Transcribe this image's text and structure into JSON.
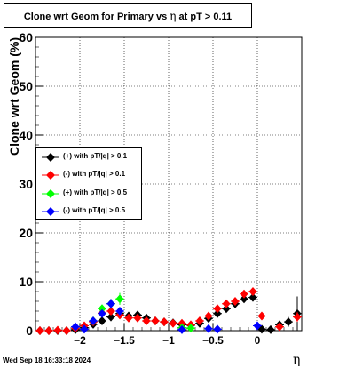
{
  "title": {
    "prefix": "Clone wrt Geom for Primary vs",
    "symbol": "η",
    "suffix": "at pT > 0.11"
  },
  "footer": "Wed Sep 18 16:33:18 2024",
  "colors": {
    "plus_0_1": "#000000",
    "minus_0_1": "#ff0000",
    "plus_0_5": "#00ff00",
    "minus_0_5": "#0000ff"
  },
  "chart_data": {
    "type": "scatter",
    "title": "Clone wrt Geom for Primary vs η at pT > 0.11",
    "xlabel": "η",
    "ylabel": "Clone wrt Geom (%)",
    "xlim": [
      -2.5,
      0.5
    ],
    "ylim": [
      0,
      60
    ],
    "xticks": [
      -2,
      -1.5,
      -1,
      -0.5,
      0
    ],
    "xtick_labels": [
      "−2",
      "−1.5",
      "−1",
      "−0.5",
      "0"
    ],
    "yticks": [
      0,
      10,
      20,
      30,
      40,
      50,
      60
    ],
    "ytick_labels": [
      "0",
      "10",
      "20",
      "30",
      "40",
      "50",
      "60"
    ],
    "grid": true,
    "legend_position": "middle-left",
    "series": [
      {
        "name": "(+) with pT/|q| > 0.1",
        "color": "#000000",
        "points": [
          [
            -2.45,
            0
          ],
          [
            -2.35,
            0
          ],
          [
            -2.25,
            0
          ],
          [
            -2.15,
            0
          ],
          [
            -2.05,
            0.2
          ],
          [
            -1.95,
            0.6
          ],
          [
            -1.85,
            1.3
          ],
          [
            -1.75,
            2.0
          ],
          [
            -1.65,
            2.8
          ],
          [
            -1.55,
            3.5
          ],
          [
            -1.45,
            3.0
          ],
          [
            -1.35,
            3.2
          ],
          [
            -1.25,
            2.6
          ],
          [
            -1.15,
            2.0
          ],
          [
            -1.05,
            1.8
          ],
          [
            -0.95,
            1.6
          ],
          [
            -0.85,
            1.2
          ],
          [
            -0.75,
            1.1
          ],
          [
            -0.65,
            1.5
          ],
          [
            -0.55,
            2.5
          ],
          [
            -0.45,
            3.5
          ],
          [
            -0.35,
            4.5
          ],
          [
            -0.25,
            5.5
          ],
          [
            -0.15,
            6.5
          ],
          [
            -0.05,
            6.8
          ],
          [
            0.05,
            0.3
          ],
          [
            0.15,
            0.2
          ],
          [
            0.25,
            1.2
          ],
          [
            0.35,
            1.8
          ],
          [
            0.45,
            3.5
          ]
        ],
        "errors": [
          0.2,
          0.2,
          0.2,
          0.2,
          0.2,
          0.2,
          0.3,
          0.3,
          0.3,
          0.4,
          0.3,
          0.3,
          0.3,
          0.3,
          0.2,
          0.2,
          0.2,
          0.2,
          0.2,
          0.3,
          0.3,
          0.4,
          0.4,
          0.5,
          0.5,
          0.3,
          0.3,
          0.8,
          1.0,
          3.5
        ]
      },
      {
        "name": "(-) with pT/|q| > 0.1",
        "color": "#ff0000",
        "points": [
          [
            -2.45,
            0
          ],
          [
            -2.35,
            0
          ],
          [
            -2.25,
            0.1
          ],
          [
            -2.15,
            0
          ],
          [
            -2.05,
            0.5
          ],
          [
            -1.95,
            1.0
          ],
          [
            -1.85,
            1.8
          ],
          [
            -1.75,
            3.6
          ],
          [
            -1.65,
            4.0
          ],
          [
            -1.55,
            3.2
          ],
          [
            -1.45,
            2.6
          ],
          [
            -1.35,
            2.6
          ],
          [
            -1.25,
            2.0
          ],
          [
            -1.15,
            2.0
          ],
          [
            -1.05,
            1.8
          ],
          [
            -0.95,
            1.5
          ],
          [
            -0.85,
            1.5
          ],
          [
            -0.75,
            1.2
          ],
          [
            -0.65,
            2.0
          ],
          [
            -0.55,
            3.0
          ],
          [
            -0.45,
            4.5
          ],
          [
            -0.35,
            5.5
          ],
          [
            -0.25,
            6.0
          ],
          [
            -0.15,
            7.5
          ],
          [
            -0.05,
            8.0
          ],
          [
            0.05,
            3.0
          ],
          [
            0.25,
            0.8
          ],
          [
            0.45,
            2.8
          ]
        ],
        "errors": [
          0.2,
          0.2,
          0.2,
          0.2,
          0.2,
          0.2,
          0.3,
          0.3,
          0.3,
          0.3,
          0.3,
          0.3,
          0.3,
          0.3,
          0.2,
          0.2,
          0.2,
          0.2,
          0.2,
          0.3,
          0.4,
          0.4,
          0.5,
          0.5,
          0.6,
          0.4,
          0.3,
          1.0
        ]
      },
      {
        "name": "(+) with pT/|q| > 0.5",
        "color": "#00ff00",
        "points": [
          [
            -1.85,
            2.0
          ],
          [
            -1.75,
            4.5
          ],
          [
            -1.65,
            5.5
          ],
          [
            -1.55,
            6.5
          ],
          [
            -0.85,
            0.6
          ],
          [
            -0.75,
            0.5
          ]
        ],
        "errors": [
          0.5,
          0.8,
          1.0,
          1.2,
          0.3,
          0.3
        ]
      },
      {
        "name": "(-) with pT/|q| > 0.5",
        "color": "#0000ff",
        "points": [
          [
            -2.05,
            0.8
          ],
          [
            -1.95,
            0.3
          ],
          [
            -1.85,
            2.0
          ],
          [
            -1.75,
            3.5
          ],
          [
            -1.65,
            5.5
          ],
          [
            -1.55,
            4.0
          ],
          [
            -0.85,
            0.2
          ],
          [
            -0.55,
            0.4
          ],
          [
            -0.45,
            0.3
          ],
          [
            0.0,
            1.0
          ]
        ],
        "errors": [
          0.3,
          0.3,
          0.5,
          0.7,
          1.0,
          0.8,
          0.2,
          0.2,
          0.2,
          0.3
        ]
      }
    ]
  }
}
